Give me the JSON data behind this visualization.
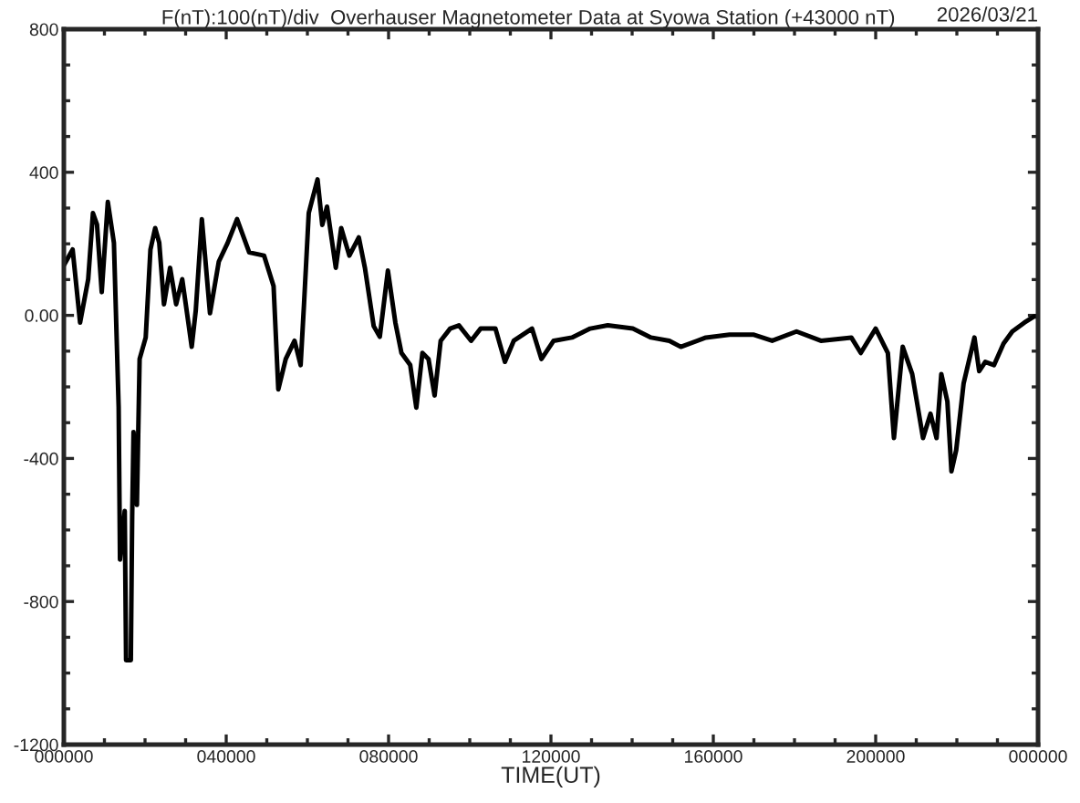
{
  "chart_data": {
    "type": "line",
    "title": "F(nT):100(nT)/div  Overhauser Magnetometer Data at Syowa Station (+43000 nT)",
    "annotations": [
      "2026/03/21"
    ],
    "xlabel": "TIME(UT)",
    "series": [
      {
        "color": "#000000",
        "x": [
          "2026-03-21T00:00",
          "2026-03-21T00:13",
          "2026-03-21T00:24",
          "2026-03-21T00:36",
          "2026-03-21T00:43",
          "2026-03-21T00:49",
          "2026-03-21T00:56",
          "2026-03-21T01:05",
          "2026-03-21T01:14",
          "2026-03-21T01:21",
          "2026-03-21T01:23",
          "2026-03-21T01:30",
          "2026-03-21T01:32",
          "2026-03-21T01:39",
          "2026-03-21T01:41",
          "2026-03-21T01:43",
          "2026-03-21T01:48",
          "2026-03-21T01:52",
          "2026-03-21T02:01",
          "2026-03-21T02:08",
          "2026-03-21T02:15",
          "2026-03-21T02:21",
          "2026-03-21T02:28",
          "2026-03-21T02:37",
          "2026-03-21T02:46",
          "2026-03-21T02:55",
          "2026-03-21T03:04",
          "2026-03-21T03:09",
          "2026-03-21T03:15",
          "2026-03-21T03:24",
          "2026-03-21T03:36",
          "2026-03-21T03:49",
          "2026-03-21T04:02",
          "2026-03-21T04:16",
          "2026-03-21T04:34",
          "2026-03-21T04:56",
          "2026-03-21T05:10",
          "2026-03-21T05:17",
          "2026-03-21T05:28",
          "2026-03-21T05:41",
          "2026-03-21T05:50",
          "2026-03-21T05:55",
          "2026-03-21T06:02",
          "2026-03-21T06:15",
          "2026-03-21T06:22",
          "2026-03-21T06:29",
          "2026-03-21T06:42",
          "2026-03-21T06:50",
          "2026-03-21T07:02",
          "2026-03-21T07:16",
          "2026-03-21T07:25",
          "2026-03-21T07:38",
          "2026-03-21T07:47",
          "2026-03-21T07:59",
          "2026-03-21T08:10",
          "2026-03-21T08:19",
          "2026-03-21T08:32",
          "2026-03-21T08:41",
          "2026-03-21T08:50",
          "2026-03-21T08:59",
          "2026-03-21T09:08",
          "2026-03-21T09:17",
          "2026-03-21T09:31",
          "2026-03-21T09:44",
          "2026-03-21T10:02",
          "2026-03-21T10:16",
          "2026-03-21T10:38",
          "2026-03-21T10:52",
          "2026-03-21T11:05",
          "2026-03-21T11:32",
          "2026-03-21T11:46",
          "2026-03-21T12:04",
          "2026-03-21T12:31",
          "2026-03-21T12:58",
          "2026-03-21T13:24",
          "2026-03-21T14:01",
          "2026-03-21T14:28",
          "2026-03-21T14:55",
          "2026-03-21T15:12",
          "2026-03-21T15:49",
          "2026-03-21T16:24",
          "2026-03-21T17:00",
          "2026-03-21T17:27",
          "2026-03-21T18:03",
          "2026-03-21T18:39",
          "2026-03-21T19:24",
          "2026-03-21T19:38",
          "2026-03-21T20:00",
          "2026-03-21T20:18",
          "2026-03-21T20:27",
          "2026-03-21T20:40",
          "2026-03-21T20:54",
          "2026-03-21T21:10",
          "2026-03-21T21:21",
          "2026-03-21T21:30",
          "2026-03-21T21:37",
          "2026-03-21T21:46",
          "2026-03-21T21:52",
          "2026-03-21T21:59",
          "2026-03-21T22:10",
          "2026-03-21T22:26",
          "2026-03-21T22:33",
          "2026-03-21T22:42",
          "2026-03-21T22:55",
          "2026-03-21T23:09",
          "2026-03-21T23:22",
          "2026-03-21T23:40",
          "2026-03-21T23:54",
          "2026-03-22T00:00"
        ],
        "values": [
          140,
          184,
          -20,
          101,
          286,
          254,
          65,
          317,
          203,
          -256,
          -683,
          -547,
          -964,
          -964,
          -562,
          -326,
          -530,
          -122,
          -62,
          184,
          244,
          203,
          31,
          133,
          31,
          101,
          -20,
          -88,
          14,
          269,
          6,
          150,
          202,
          269,
          176,
          167,
          82,
          -207,
          -122,
          -71,
          -139,
          31,
          286,
          380,
          253,
          304,
          133,
          244,
          167,
          218,
          133,
          -30,
          -60,
          125,
          -20,
          -105,
          -139,
          -258,
          -105,
          -122,
          -224,
          -71,
          -37,
          -28,
          -71,
          -37,
          -37,
          -130,
          -71,
          -37,
          -122,
          -71,
          -62,
          -37,
          -28,
          -37,
          -62,
          -71,
          -88,
          -62,
          -54,
          -54,
          -71,
          -45,
          -71,
          -62,
          -105,
          -37,
          -105,
          -343,
          -88,
          -164,
          -343,
          -275,
          -343,
          -164,
          -241,
          -436,
          -377,
          -190,
          -62,
          -156,
          -130,
          -139,
          -79,
          -45,
          -20,
          -3,
          -3
        ]
      }
    ],
    "xlim": [
      "2026-03-21T00:00",
      "2026-03-22T00:00"
    ],
    "xticks": [
      {
        "value": "2026-03-21T00:00",
        "label": "000000"
      },
      {
        "value": "2026-03-21T04:00",
        "label": "040000"
      },
      {
        "value": "2026-03-21T08:00",
        "label": "080000"
      },
      {
        "value": "2026-03-21T12:00",
        "label": "120000"
      },
      {
        "value": "2026-03-21T16:00",
        "label": "160000"
      },
      {
        "value": "2026-03-21T20:00",
        "label": "200000"
      },
      {
        "value": "2026-03-22T00:00",
        "label": "000000"
      }
    ],
    "ylim": [
      -1200,
      800
    ],
    "yticks": [
      800,
      400,
      {
        "value": 0,
        "label": "0.00"
      },
      -400,
      -800,
      -1200
    ],
    "grid": false,
    "legend": false,
    "marker": "none",
    "line_style": "solid"
  }
}
